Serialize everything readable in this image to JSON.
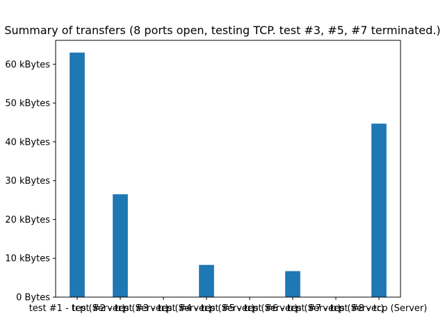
{
  "chart_data": {
    "type": "bar",
    "title": "Summary of transfers (8 ports open, testing TCP. test #3, #5, #7 terminated.)",
    "xlabel": "",
    "ylabel": "",
    "categories": [
      "test #1 - tcp (Server)",
      "test #2 - tcp (Server)",
      "test #3 - tcp (Server)",
      "test #4 - tcp (Server)",
      "test #5 - tcp (Server)",
      "test #6 - tcp (Server)",
      "test #7 - tcp (Server)",
      "test #8 - tcp (Server)"
    ],
    "values": [
      63000,
      26500,
      0,
      8300,
      0,
      6700,
      0,
      44700
    ],
    "unit": "Bytes",
    "ylim": [
      0,
      66150
    ],
    "yticks": [
      0,
      10000,
      20000,
      30000,
      40000,
      50000,
      60000
    ],
    "ytick_labels": [
      "0 Bytes",
      "10 kBytes",
      "20 kBytes",
      "30 kBytes",
      "40 kBytes",
      "50 kBytes",
      "60 kBytes"
    ],
    "bar_color": "#1f77b4",
    "grid": false,
    "legend": "none"
  }
}
